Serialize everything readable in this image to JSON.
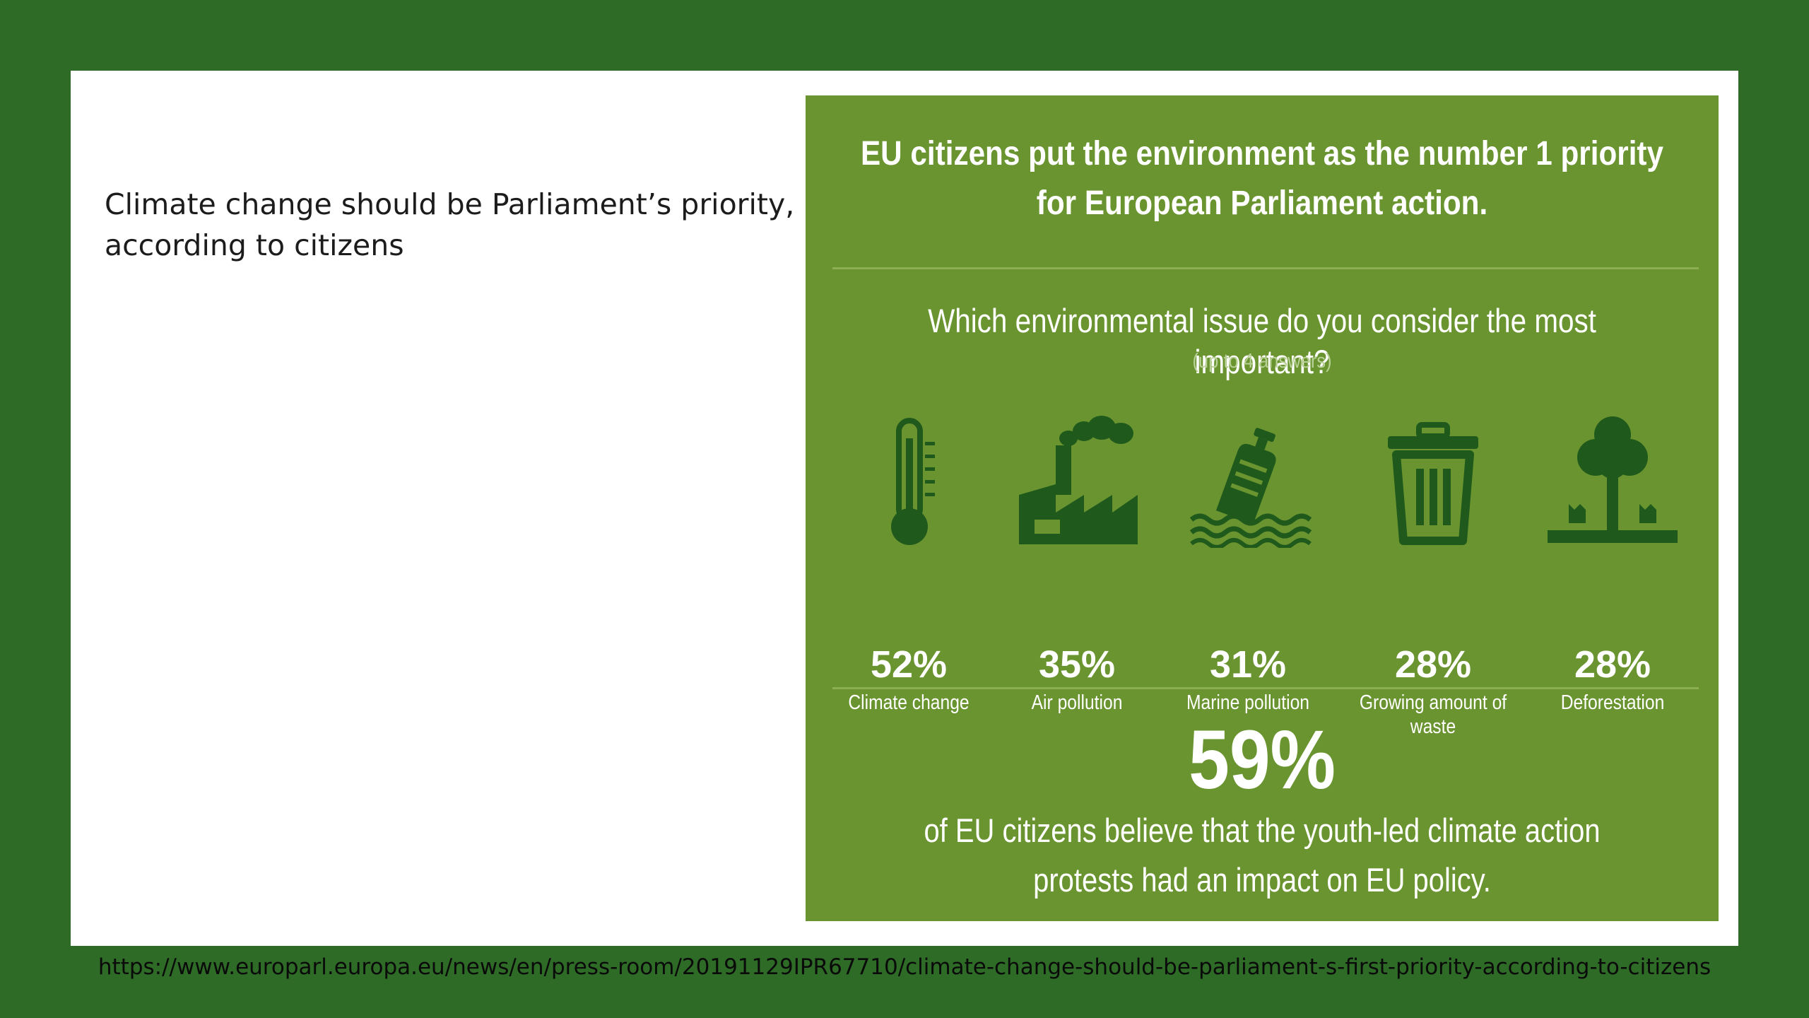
{
  "slide": {
    "caption": "Climate change should be Parliament’s priority, according to citizens",
    "source_url": "https://www.europarl.europa.eu/news/en/press-room/20191129IPR67710/climate-change-should-be-parliament-s-first-priority-according-to-citizens"
  },
  "infographic": {
    "title": "EU citizens put the environment as the number 1 priority for European Parliament action.",
    "question": "Which environmental issue do you consider the most important?",
    "note": "(up to 4 answers)",
    "items": [
      {
        "icon": "thermometer-icon",
        "percent": "52%",
        "label": "Climate change"
      },
      {
        "icon": "factory-icon",
        "percent": "35%",
        "label": "Air pollution"
      },
      {
        "icon": "marine-pollution-icon",
        "percent": "31%",
        "label": "Marine pollution"
      },
      {
        "icon": "trash-bin-icon",
        "percent": "28%",
        "label": "Growing amount of waste"
      },
      {
        "icon": "deforestation-icon",
        "percent": "28%",
        "label": "Deforestation"
      }
    ],
    "headline_percent": "59%",
    "headline_text": "of EU citizens believe that the youth-led climate action protests had an impact on EU policy.",
    "colors": {
      "panel_background": "#6a942f",
      "icon": "#1f5a1c",
      "outer_background": "#2e6b27"
    }
  }
}
